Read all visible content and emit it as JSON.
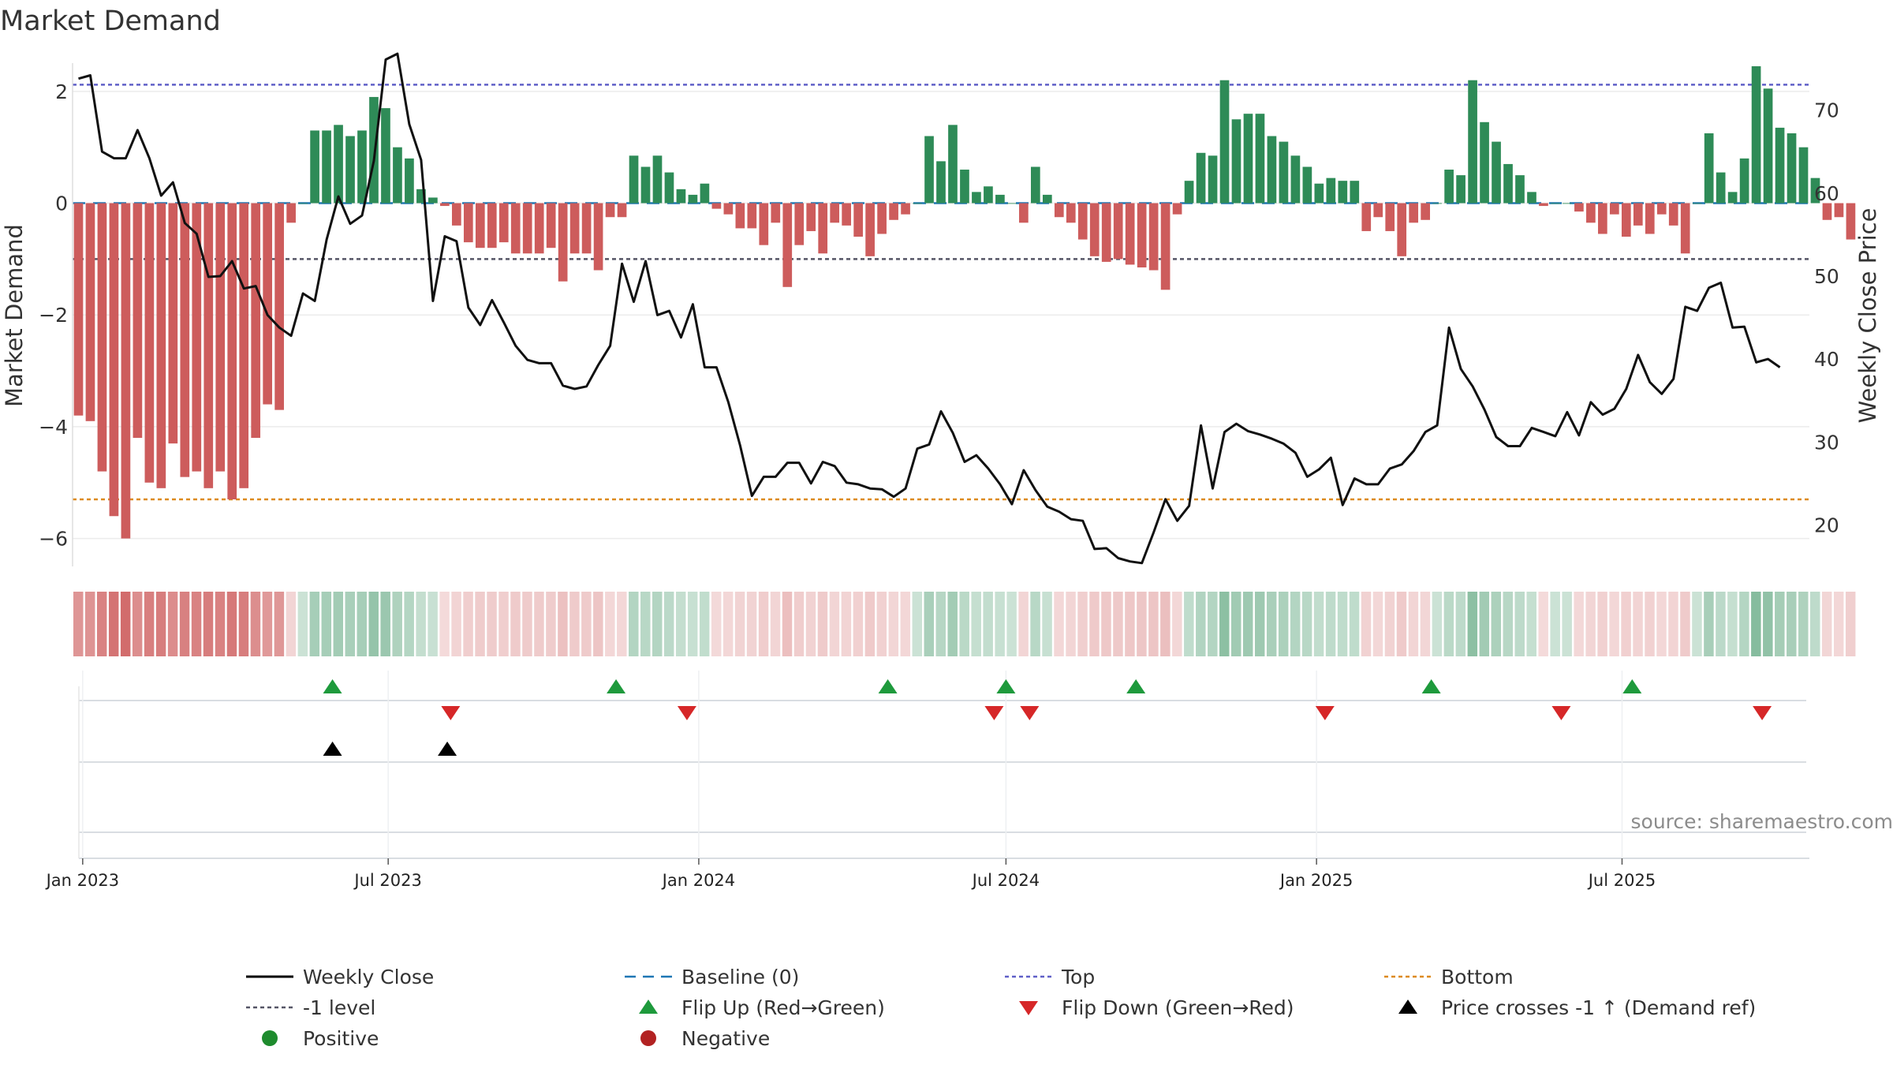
{
  "title": "Market Demand",
  "chart_data": {
    "type": "bar",
    "title": "Market Demand",
    "ylabel_left": "Market Demand",
    "ylabel_right": "Weekly Close Price",
    "ylim_left": [
      -6.5,
      3.0
    ],
    "ylim_right": [
      15,
      79
    ],
    "yticks_left": [
      2,
      0,
      -2,
      -4,
      -6
    ],
    "yticks_right": [
      70,
      60,
      50,
      40,
      30,
      20
    ],
    "x_start": "2022-12-26",
    "x_end": "2025-10-20",
    "x_ticks": [
      {
        "date": "2023-01-01",
        "label": "Jan 2023"
      },
      {
        "date": "2023-07-01",
        "label": "Jul 2023"
      },
      {
        "date": "2024-01-01",
        "label": "Jan 2024"
      },
      {
        "date": "2024-07-01",
        "label": "Jul 2024"
      },
      {
        "date": "2025-01-01",
        "label": "Jan 2025"
      },
      {
        "date": "2025-07-01",
        "label": "Jul 2025"
      }
    ],
    "first_week": "2022-12-26",
    "reference_lines": {
      "top": 2.12,
      "minus_one": -1.0,
      "bottom": -5.3,
      "baseline": 0
    },
    "demand": [
      -3.8,
      -3.9,
      -4.8,
      -5.6,
      -6.0,
      -4.2,
      -5.0,
      -5.1,
      -4.3,
      -4.9,
      -4.8,
      -5.1,
      -4.8,
      -5.3,
      -5.1,
      -4.2,
      -3.6,
      -3.7,
      -0.35,
      0,
      1.3,
      1.3,
      1.4,
      1.2,
      1.3,
      1.9,
      1.7,
      1.0,
      0.8,
      0.25,
      0.1,
      -0.05,
      -0.4,
      -0.7,
      -0.8,
      -0.8,
      -0.7,
      -0.9,
      -0.9,
      -0.9,
      -0.8,
      -1.4,
      -0.9,
      -0.9,
      -1.2,
      -0.25,
      -0.25,
      0.85,
      0.65,
      0.85,
      0.55,
      0.25,
      0.15,
      0.35,
      -0.1,
      -0.2,
      -0.45,
      -0.45,
      -0.75,
      -0.35,
      -1.5,
      -0.75,
      -0.5,
      -0.9,
      -0.35,
      -0.4,
      -0.6,
      -0.95,
      -0.55,
      -0.3,
      -0.2,
      0,
      1.2,
      0.75,
      1.4,
      0.6,
      0.2,
      0.3,
      0.15,
      0,
      -0.35,
      0.65,
      0.15,
      -0.25,
      -0.35,
      -0.65,
      -0.95,
      -1.05,
      -1.0,
      -1.1,
      -1.15,
      -1.2,
      -1.55,
      -0.2,
      0.4,
      0.9,
      0.85,
      2.2,
      1.5,
      1.6,
      1.6,
      1.2,
      1.1,
      0.85,
      0.65,
      0.35,
      0.45,
      0.4,
      0.4,
      -0.5,
      -0.25,
      -0.5,
      -0.95,
      -0.35,
      -0.3,
      0,
      0.6,
      0.5,
      2.2,
      1.45,
      1.1,
      0.7,
      0.5,
      0.2,
      -0.05,
      0,
      0,
      -0.15,
      -0.35,
      -0.55,
      -0.2,
      -0.6,
      -0.4,
      -0.55,
      -0.2,
      -0.4,
      -0.9,
      0,
      1.25,
      0.55,
      0.2,
      0.8,
      2.45,
      2.05,
      1.35,
      1.25,
      1.0,
      0.45,
      -0.3,
      -0.25,
      -0.65
    ],
    "close": [
      73.8,
      74.2,
      65.0,
      64.2,
      64.2,
      67.6,
      64.2,
      59.7,
      61.3,
      56.4,
      55.1,
      49.9,
      50.0,
      51.8,
      48.5,
      48.8,
      45.3,
      43.8,
      42.8,
      47.9,
      47.0,
      54.4,
      59.6,
      56.3,
      57.3,
      63.9,
      76.1,
      76.8,
      68.3,
      64.0,
      47.0,
      54.8,
      54.2,
      46.2,
      44.1,
      47.1,
      44.4,
      41.6,
      39.9,
      39.5,
      39.5,
      36.8,
      36.4,
      36.7,
      39.3,
      41.6,
      51.5,
      46.9,
      51.8,
      45.3,
      45.8,
      42.6,
      46.6,
      39.0,
      39.0,
      34.8,
      29.6,
      23.5,
      25.8,
      25.8,
      27.5,
      27.5,
      25.0,
      27.6,
      27.1,
      25.1,
      24.9,
      24.4,
      24.3,
      23.4,
      24.4,
      29.2,
      29.7,
      33.7,
      31.1,
      27.6,
      28.4,
      26.8,
      24.9,
      22.5,
      26.6,
      24.2,
      22.2,
      21.6,
      20.7,
      20.5,
      17.1,
      17.2,
      16.0,
      15.6,
      15.4,
      19.1,
      23.1,
      20.5,
      22.3,
      32.0,
      24.4,
      31.2,
      32.2,
      31.3,
      30.9,
      30.4,
      29.8,
      28.7,
      25.8,
      26.7,
      28.1,
      22.4,
      25.6,
      24.9,
      24.9,
      26.8,
      27.3,
      28.9,
      31.2,
      32.0,
      43.8,
      38.8,
      36.7,
      33.9,
      30.6,
      29.5,
      29.5,
      31.7,
      31.2,
      30.7,
      33.6,
      30.8,
      34.8,
      33.3,
      34.0,
      36.4,
      40.5,
      37.2,
      35.8,
      37.6,
      46.3,
      45.8,
      48.6,
      49.2,
      43.8,
      43.9,
      39.6,
      40.0,
      39.0
    ],
    "flip_up_dates": [
      "2023-05-29",
      "2023-11-13",
      "2024-04-22",
      "2024-07-01",
      "2024-09-16",
      "2025-03-10",
      "2025-07-07"
    ],
    "flip_down_dates": [
      "2023-08-07",
      "2023-12-25",
      "2024-06-24",
      "2024-07-15",
      "2025-01-06",
      "2025-05-26",
      "2025-09-22"
    ],
    "price_cross_dates": [
      "2023-05-29",
      "2023-08-05"
    ],
    "legend": [
      {
        "key": "weekly_close",
        "label": "Weekly Close",
        "color": "#000000",
        "symbol": "line"
      },
      {
        "key": "baseline",
        "label": "Baseline (0)",
        "color": "#1f77b4",
        "symbol": "dash"
      },
      {
        "key": "top",
        "label": "Top",
        "color": "#6060c8",
        "symbol": "dot"
      },
      {
        "key": "bottom",
        "label": "Bottom",
        "color": "#dd8a1e",
        "symbol": "dot"
      },
      {
        "key": "minus_one",
        "label": "-1 level",
        "color": "#555566",
        "symbol": "dot"
      },
      {
        "key": "flip_up",
        "label": "Flip Up (Red→Green)",
        "color": "#1e9a3c",
        "symbol": "triangle-up"
      },
      {
        "key": "flip_down",
        "label": "Flip Down (Green→Red)",
        "color": "#d62728",
        "symbol": "triangle-down"
      },
      {
        "key": "price_cross",
        "label": "Price crosses -1 ↑ (Demand ref)",
        "color": "#000000",
        "symbol": "triangle-up"
      },
      {
        "key": "positive",
        "label": "Positive",
        "color": "#1e8b2e",
        "symbol": "circle"
      },
      {
        "key": "negative",
        "label": "Negative",
        "color": "#b22222",
        "symbol": "circle"
      }
    ]
  },
  "colors": {
    "positive_bar": "#2e8b57",
    "negative_bar": "#cd5c5c",
    "heat_positive": "#2e8b57",
    "heat_negative": "#cd5c5c"
  },
  "source_text": "source: sharemaestro.com"
}
